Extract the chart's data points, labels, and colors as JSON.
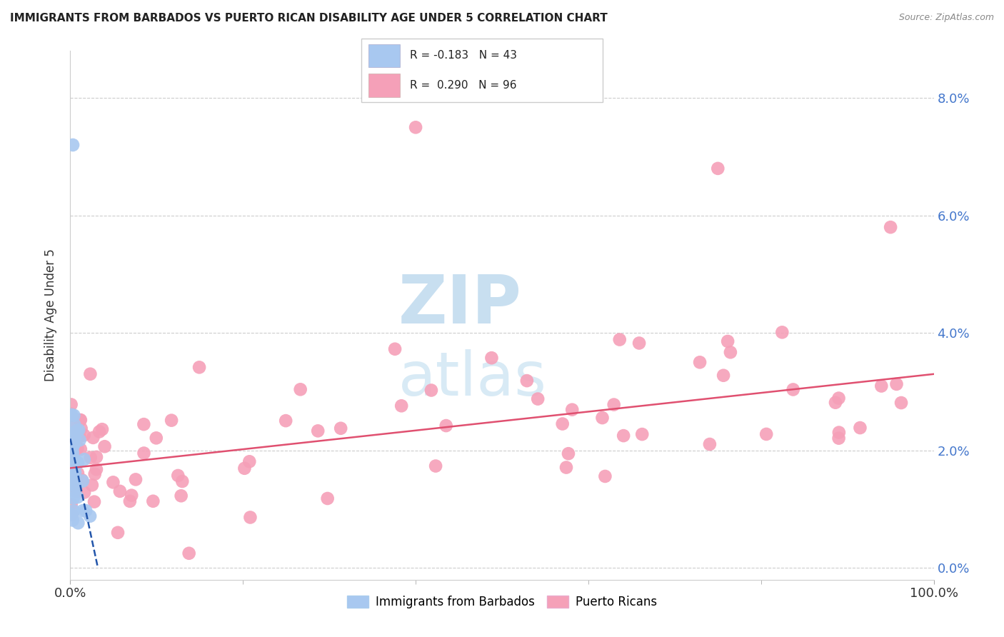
{
  "title": "IMMIGRANTS FROM BARBADOS VS PUERTO RICAN DISABILITY AGE UNDER 5 CORRELATION CHART",
  "source": "Source: ZipAtlas.com",
  "ylabel": "Disability Age Under 5",
  "ytick_labels": [
    "0.0%",
    "2.0%",
    "4.0%",
    "6.0%",
    "8.0%"
  ],
  "ytick_values": [
    0.0,
    0.02,
    0.04,
    0.06,
    0.08
  ],
  "xlim": [
    0.0,
    1.0
  ],
  "ylim": [
    -0.002,
    0.088
  ],
  "legend_blue_label": "Immigrants from Barbados",
  "legend_pink_label": "Puerto Ricans",
  "blue_color": "#a8c8f0",
  "pink_color": "#f5a0b8",
  "blue_line_color": "#2255aa",
  "pink_line_color": "#e05070",
  "right_label_color": "#4477cc",
  "background_color": "#ffffff",
  "grid_color": "#cccccc",
  "watermark_zip_color": "#c8dff0",
  "watermark_atlas_color": "#d8eaf5"
}
